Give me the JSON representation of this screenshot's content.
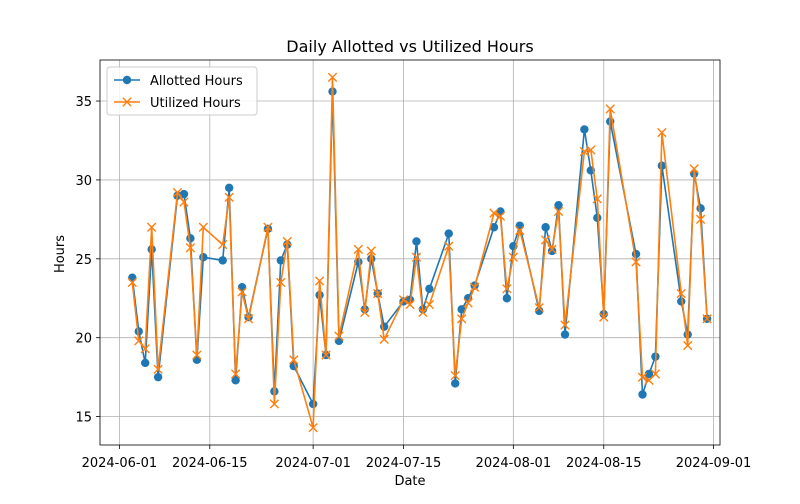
{
  "chart_data": {
    "type": "line",
    "title": "Daily Allotted vs Utilized Hours",
    "xlabel": "Date",
    "ylabel": "Hours",
    "xlim": [
      "2024-05-29",
      "2024-09-02"
    ],
    "ylim": [
      13.2,
      37.6
    ],
    "xticks": [
      {
        "date": "2024-06-01",
        "label": "2024-06-01"
      },
      {
        "date": "2024-06-15",
        "label": "2024-06-15"
      },
      {
        "date": "2024-07-01",
        "label": "2024-07-01"
      },
      {
        "date": "2024-07-15",
        "label": "2024-07-15"
      },
      {
        "date": "2024-08-01",
        "label": "2024-08-01"
      },
      {
        "date": "2024-08-15",
        "label": "2024-08-15"
      },
      {
        "date": "2024-09-01",
        "label": "2024-09-01"
      }
    ],
    "yticks": [
      15,
      20,
      25,
      30,
      35
    ],
    "grid": true,
    "legend_position": "top-left",
    "series": [
      {
        "name": "Allotted Hours",
        "color": "#1f77b4",
        "marker": "circle",
        "points": [
          [
            "2024-06-03",
            23.8
          ],
          [
            "2024-06-04",
            20.4
          ],
          [
            "2024-06-05",
            18.4
          ],
          [
            "2024-06-06",
            25.6
          ],
          [
            "2024-06-07",
            17.5
          ],
          [
            "2024-06-10",
            29.0
          ],
          [
            "2024-06-11",
            29.1
          ],
          [
            "2024-06-12",
            26.3
          ],
          [
            "2024-06-13",
            18.6
          ],
          [
            "2024-06-14",
            25.1
          ],
          [
            "2024-06-17",
            24.9
          ],
          [
            "2024-06-18",
            29.5
          ],
          [
            "2024-06-19",
            17.3
          ],
          [
            "2024-06-20",
            23.2
          ],
          [
            "2024-06-21",
            21.3
          ],
          [
            "2024-06-24",
            26.9
          ],
          [
            "2024-06-25",
            16.6
          ],
          [
            "2024-06-26",
            24.9
          ],
          [
            "2024-06-27",
            25.9
          ],
          [
            "2024-06-28",
            18.2
          ],
          [
            "2024-07-01",
            15.8
          ],
          [
            "2024-07-02",
            22.7
          ],
          [
            "2024-07-03",
            18.9
          ],
          [
            "2024-07-04",
            35.6
          ],
          [
            "2024-07-05",
            19.8
          ],
          [
            "2024-07-08",
            24.8
          ],
          [
            "2024-07-09",
            21.8
          ],
          [
            "2024-07-10",
            25.0
          ],
          [
            "2024-07-11",
            22.8
          ],
          [
            "2024-07-12",
            20.7
          ],
          [
            "2024-07-15",
            22.3
          ],
          [
            "2024-07-16",
            22.4
          ],
          [
            "2024-07-17",
            26.1
          ],
          [
            "2024-07-18",
            21.8
          ],
          [
            "2024-07-19",
            23.1
          ],
          [
            "2024-07-22",
            26.6
          ],
          [
            "2024-07-23",
            17.1
          ],
          [
            "2024-07-24",
            21.8
          ],
          [
            "2024-07-25",
            22.5
          ],
          [
            "2024-07-26",
            23.3
          ],
          [
            "2024-07-29",
            27.0
          ],
          [
            "2024-07-30",
            28.0
          ],
          [
            "2024-07-31",
            22.5
          ],
          [
            "2024-08-01",
            25.8
          ],
          [
            "2024-08-02",
            27.1
          ],
          [
            "2024-08-05",
            21.7
          ],
          [
            "2024-08-06",
            27.0
          ],
          [
            "2024-08-07",
            25.5
          ],
          [
            "2024-08-08",
            28.4
          ],
          [
            "2024-08-09",
            20.2
          ],
          [
            "2024-08-12",
            33.2
          ],
          [
            "2024-08-13",
            30.6
          ],
          [
            "2024-08-14",
            27.6
          ],
          [
            "2024-08-15",
            21.5
          ],
          [
            "2024-08-16",
            33.7
          ],
          [
            "2024-08-20",
            25.3
          ],
          [
            "2024-08-21",
            16.4
          ],
          [
            "2024-08-22",
            17.7
          ],
          [
            "2024-08-23",
            18.8
          ],
          [
            "2024-08-24",
            30.9
          ],
          [
            "2024-08-27",
            22.3
          ],
          [
            "2024-08-28",
            20.2
          ],
          [
            "2024-08-29",
            30.4
          ],
          [
            "2024-08-30",
            28.2
          ],
          [
            "2024-08-31",
            21.2
          ]
        ]
      },
      {
        "name": "Utilized Hours",
        "color": "#ff7f0e",
        "marker": "x",
        "points": [
          [
            "2024-06-03",
            23.5
          ],
          [
            "2024-06-04",
            19.8
          ],
          [
            "2024-06-05",
            19.3
          ],
          [
            "2024-06-06",
            27.0
          ],
          [
            "2024-06-07",
            18.0
          ],
          [
            "2024-06-10",
            29.2
          ],
          [
            "2024-06-11",
            28.6
          ],
          [
            "2024-06-12",
            25.7
          ],
          [
            "2024-06-13",
            18.9
          ],
          [
            "2024-06-14",
            27.0
          ],
          [
            "2024-06-17",
            25.9
          ],
          [
            "2024-06-18",
            28.9
          ],
          [
            "2024-06-19",
            17.7
          ],
          [
            "2024-06-20",
            22.9
          ],
          [
            "2024-06-21",
            21.2
          ],
          [
            "2024-06-24",
            27.0
          ],
          [
            "2024-06-25",
            15.8
          ],
          [
            "2024-06-26",
            23.5
          ],
          [
            "2024-06-27",
            26.1
          ],
          [
            "2024-06-28",
            18.6
          ],
          [
            "2024-07-01",
            14.3
          ],
          [
            "2024-07-02",
            23.6
          ],
          [
            "2024-07-03",
            18.9
          ],
          [
            "2024-07-04",
            36.5
          ],
          [
            "2024-07-05",
            20.1
          ],
          [
            "2024-07-08",
            25.6
          ],
          [
            "2024-07-09",
            21.6
          ],
          [
            "2024-07-10",
            25.5
          ],
          [
            "2024-07-11",
            22.8
          ],
          [
            "2024-07-12",
            19.9
          ],
          [
            "2024-07-15",
            22.4
          ],
          [
            "2024-07-16",
            22.1
          ],
          [
            "2024-07-17",
            25.1
          ],
          [
            "2024-07-18",
            21.6
          ],
          [
            "2024-07-19",
            22.1
          ],
          [
            "2024-07-22",
            25.8
          ],
          [
            "2024-07-23",
            17.6
          ],
          [
            "2024-07-24",
            21.2
          ],
          [
            "2024-07-25",
            22.2
          ],
          [
            "2024-07-26",
            23.2
          ],
          [
            "2024-07-29",
            27.9
          ],
          [
            "2024-07-30",
            27.7
          ],
          [
            "2024-07-31",
            23.1
          ],
          [
            "2024-08-01",
            25.1
          ],
          [
            "2024-08-02",
            26.8
          ],
          [
            "2024-08-05",
            21.9
          ],
          [
            "2024-08-06",
            26.2
          ],
          [
            "2024-08-07",
            25.6
          ],
          [
            "2024-08-08",
            28.0
          ],
          [
            "2024-08-09",
            20.8
          ],
          [
            "2024-08-12",
            31.8
          ],
          [
            "2024-08-13",
            31.9
          ],
          [
            "2024-08-14",
            28.8
          ],
          [
            "2024-08-15",
            21.3
          ],
          [
            "2024-08-16",
            34.5
          ],
          [
            "2024-08-20",
            24.8
          ],
          [
            "2024-08-21",
            17.5
          ],
          [
            "2024-08-22",
            17.3
          ],
          [
            "2024-08-23",
            17.7
          ],
          [
            "2024-08-24",
            33.0
          ],
          [
            "2024-08-27",
            22.8
          ],
          [
            "2024-08-28",
            19.5
          ],
          [
            "2024-08-29",
            30.7
          ],
          [
            "2024-08-30",
            27.5
          ],
          [
            "2024-08-31",
            21.2
          ]
        ]
      }
    ]
  }
}
